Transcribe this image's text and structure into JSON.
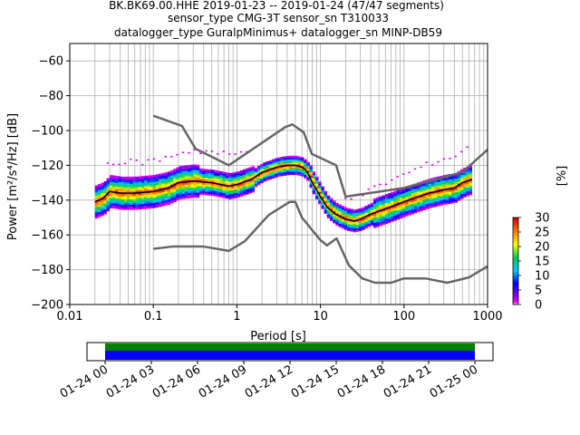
{
  "title": {
    "line1": "BK.BK69.00.HHE   2019-01-23 -- 2019-01-24  (47/47 segments)",
    "line2": "sensor_type CMG-3T sensor_sn T310033",
    "line3": "datalogger_type GuralpMinimus+ datalogger_sn MINP-DB59"
  },
  "chart_data": [
    {
      "type": "heatmap",
      "subtype": "probabilistic-power-spectral-density",
      "xlabel": "Period [s]",
      "ylabel": "Power [m²/s⁴/Hz] [dB]",
      "xscale": "log",
      "xlim": [
        0.01,
        1000
      ],
      "ylim": [
        -200,
        -50
      ],
      "x_ticks": [
        0.01,
        0.1,
        1,
        10,
        100,
        1000
      ],
      "x_tick_labels": [
        "0.01",
        "0.1",
        "1",
        "10",
        "100",
        "1000"
      ],
      "y_ticks": [
        -200,
        -180,
        -160,
        -140,
        -120,
        -100,
        -80,
        -60
      ],
      "y_tick_labels": [
        "−200",
        "−180",
        "−160",
        "−140",
        "−120",
        "−100",
        "−80",
        "−60"
      ],
      "grid": true,
      "colorbar": {
        "label": "[%]",
        "range": [
          0,
          30
        ],
        "ticks": [
          0,
          5,
          10,
          15,
          20,
          25,
          30
        ],
        "tick_labels": [
          "0",
          "5",
          "10",
          "15",
          "20",
          "25",
          "30"
        ],
        "colormap": "pqlx"
      },
      "series": [
        {
          "role": "noise-model-high",
          "color": "#666666",
          "points": [
            [
              0.1,
              -91.5
            ],
            [
              0.22,
              -97.4
            ],
            [
              0.32,
              -110.5
            ],
            [
              0.8,
              -120
            ],
            [
              3.8,
              -98
            ],
            [
              4.6,
              -96.5
            ],
            [
              6.3,
              -101
            ],
            [
              7.9,
              -113.5
            ],
            [
              15.4,
              -120
            ],
            [
              20,
              -138
            ],
            [
              100,
              -133
            ],
            [
              500,
              -124
            ],
            [
              1000,
              -111
            ]
          ]
        },
        {
          "role": "noise-model-low",
          "color": "#666666",
          "points": [
            [
              0.1,
              -168
            ],
            [
              0.17,
              -166.7
            ],
            [
              0.4,
              -166.7
            ],
            [
              0.8,
              -169.2
            ],
            [
              1.24,
              -163.7
            ],
            [
              2.4,
              -148.6
            ],
            [
              4.3,
              -141
            ],
            [
              5,
              -141
            ],
            [
              6,
              -150
            ],
            [
              10,
              -163
            ],
            [
              12,
              -166
            ],
            [
              15.6,
              -162
            ],
            [
              21.9,
              -177.5
            ],
            [
              31.6,
              -185
            ],
            [
              45,
              -187.5
            ],
            [
              70,
              -187.5
            ],
            [
              100,
              -185
            ],
            [
              180,
              -185
            ],
            [
              330,
              -187.5
            ],
            [
              600,
              -184.4
            ],
            [
              1000,
              -178
            ]
          ]
        },
        {
          "role": "mode",
          "color": "#000000",
          "points": [
            [
              0.02,
              -141
            ],
            [
              0.025,
              -139
            ],
            [
              0.03,
              -135
            ],
            [
              0.04,
              -136
            ],
            [
              0.06,
              -136
            ],
            [
              0.1,
              -135
            ],
            [
              0.15,
              -133
            ],
            [
              0.2,
              -130
            ],
            [
              0.3,
              -129
            ],
            [
              0.5,
              -130
            ],
            [
              0.8,
              -132
            ],
            [
              1,
              -131
            ],
            [
              1.5,
              -128
            ],
            [
              2,
              -124
            ],
            [
              3,
              -121
            ],
            [
              4,
              -120
            ],
            [
              5,
              -120
            ],
            [
              6,
              -121
            ],
            [
              7,
              -124
            ],
            [
              8,
              -130
            ],
            [
              10,
              -138
            ],
            [
              12,
              -144
            ],
            [
              15,
              -148
            ],
            [
              20,
              -151
            ],
            [
              25,
              -152
            ],
            [
              30,
              -151
            ],
            [
              40,
              -148
            ],
            [
              60,
              -145
            ],
            [
              100,
              -141
            ],
            [
              150,
              -138
            ],
            [
              200,
              -136
            ],
            [
              300,
              -134
            ],
            [
              400,
              -133
            ],
            [
              500,
              -130
            ],
            [
              650,
              -128
            ]
          ]
        }
      ]
    },
    {
      "type": "timeline",
      "role": "data-coverage",
      "x_tick_labels": [
        "01-24 00",
        "01-24 03",
        "01-24 06",
        "01-24 09",
        "01-24 12",
        "01-24 15",
        "01-24 18",
        "01-24 21",
        "01-25 00"
      ],
      "bars": [
        {
          "role": "processed-segments",
          "color": "#008000"
        },
        {
          "role": "data-availability",
          "color": "#0000ff"
        }
      ]
    }
  ]
}
